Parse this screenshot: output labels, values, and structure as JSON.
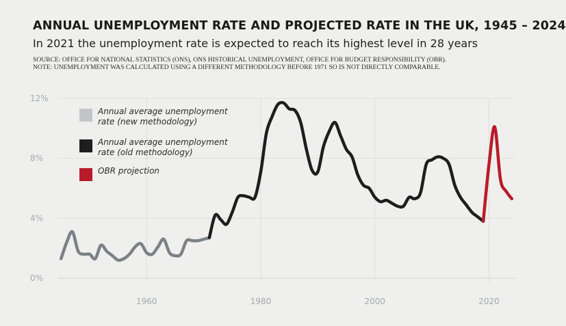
{
  "header": {
    "title": "ANNUAL UNEMPLOYMENT RATE AND PROJECTED RATE IN THE UK, 1945 – 2024",
    "subtitle": "In 2021 the unemployment rate is expected to reach its highest level in 28 years",
    "source_line1": "SOURCE: OFFICE FOR NATIONAL STATISTICS (ONS), ONS HISTORICAL UNEMPLOYMENT, OFFICE FOR BUDGET RESPONSIBILITY (OBR).",
    "source_line2": "NOTE: UNEMPLOYMENT WAS CALCULATED USING A DIFFERENT METHODOLOGY BEFORE 1971 SO IS NOT DIRECTLY COMPARABLE."
  },
  "chart_data": {
    "type": "line",
    "title": "ANNUAL UNEMPLOYMENT RATE AND PROJECTED RATE IN THE UK, 1945 – 2024",
    "subtitle": "In 2021 the unemployment rate is expected to reach its highest level in 28 years",
    "xlabel": "",
    "ylabel": "",
    "xlim": [
      1944.5,
      2024.5
    ],
    "ylim": [
      0,
      12
    ],
    "x_ticks": [
      1960,
      1980,
      2000,
      2020
    ],
    "x_tick_labels": [
      "1960",
      "1980",
      "2000",
      "2020"
    ],
    "y_ticks": [
      0,
      4,
      8,
      12
    ],
    "y_tick_labels": [
      "0%",
      "4%",
      "8%",
      "12%"
    ],
    "grid": true,
    "legend_position": "top-left",
    "series": [
      {
        "name": "Annual average unemployment rate (new methodology)",
        "legend": [
          "Annual average unemployment",
          "rate (new methodology)"
        ],
        "color": "#7b8186",
        "x": [
          1945,
          1946,
          1947,
          1948,
          1949,
          1950,
          1951,
          1952,
          1953,
          1954,
          1955,
          1956,
          1957,
          1958,
          1959,
          1960,
          1961,
          1962,
          1963,
          1964,
          1965,
          1966,
          1967,
          1968,
          1969,
          1970,
          1971
        ],
        "y": [
          1.3,
          2.4,
          3.1,
          1.8,
          1.6,
          1.6,
          1.3,
          2.2,
          1.8,
          1.5,
          1.2,
          1.3,
          1.6,
          2.1,
          2.3,
          1.7,
          1.6,
          2.1,
          2.6,
          1.7,
          1.5,
          1.6,
          2.5,
          2.5,
          2.5,
          2.6,
          2.7
        ]
      },
      {
        "name": "Annual average unemployment rate (old methodology)",
        "legend": [
          "Annual average unemployment",
          "rate (old methodology)"
        ],
        "color": "#1e1e1e",
        "x": [
          1971,
          1972,
          1973,
          1974,
          1975,
          1976,
          1977,
          1978,
          1979,
          1980,
          1981,
          1982,
          1983,
          1984,
          1985,
          1986,
          1987,
          1988,
          1989,
          1990,
          1991,
          1992,
          1993,
          1994,
          1995,
          1996,
          1997,
          1998,
          1999,
          2000,
          2001,
          2002,
          2003,
          2004,
          2005,
          2006,
          2007,
          2008,
          2009,
          2010,
          2011,
          2012,
          2013,
          2014,
          2015,
          2016,
          2017,
          2018,
          2019
        ],
        "y": [
          2.7,
          4.2,
          3.9,
          3.6,
          4.4,
          5.4,
          5.5,
          5.4,
          5.4,
          7.1,
          9.7,
          10.8,
          11.6,
          11.7,
          11.3,
          11.2,
          10.4,
          8.6,
          7.2,
          7.1,
          8.8,
          9.8,
          10.4,
          9.5,
          8.6,
          8.1,
          6.9,
          6.2,
          6.0,
          5.4,
          5.1,
          5.2,
          5.0,
          4.8,
          4.8,
          5.4,
          5.3,
          5.7,
          7.6,
          7.9,
          8.1,
          8.0,
          7.6,
          6.2,
          5.4,
          4.9,
          4.4,
          4.1,
          3.8
        ]
      },
      {
        "name": "OBR projection",
        "legend": [
          "OBR projection"
        ],
        "color": "#b81c2a",
        "x": [
          2019,
          2020,
          2021,
          2022,
          2023,
          2024
        ],
        "y": [
          3.8,
          7.6,
          10.1,
          6.6,
          5.8,
          5.3
        ]
      }
    ]
  }
}
